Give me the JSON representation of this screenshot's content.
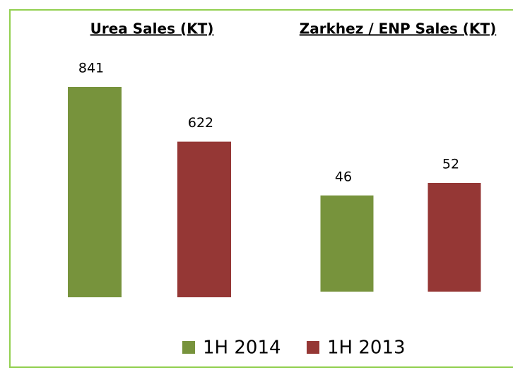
{
  "chart_data": {
    "type": "bar",
    "categories": [
      "Urea Sales (KT)",
      "Zarkhez / ENP Sales (KT)"
    ],
    "series": [
      {
        "name": "1H 2014",
        "color": "#77933c",
        "values": [
          841,
          46
        ]
      },
      {
        "name": "1H 2013",
        "color": "#953735",
        "values": [
          622,
          52
        ]
      }
    ],
    "legend": "bottom"
  }
}
